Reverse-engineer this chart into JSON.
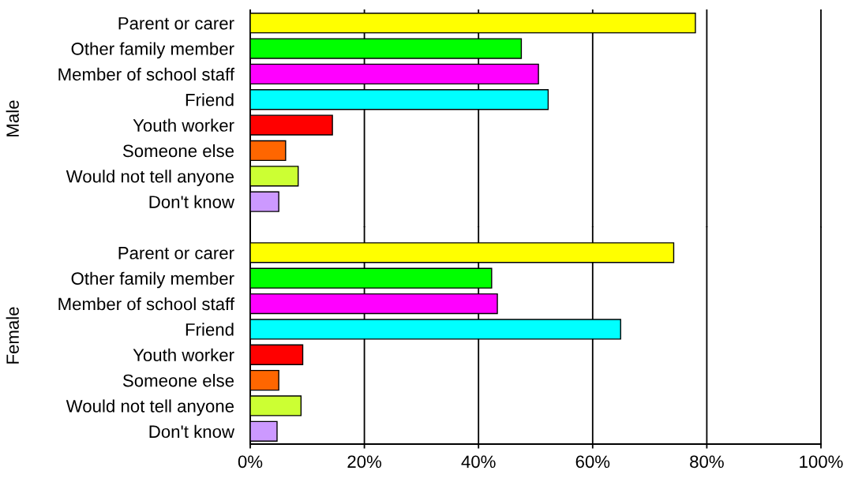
{
  "chart_data": [
    {
      "type": "bar",
      "orientation": "horizontal",
      "ylabel": "Male",
      "categories": [
        "Parent or carer",
        "Other family member",
        "Member of school staff",
        "Friend",
        "Youth worker",
        "Someone else",
        "Would not tell anyone",
        "Don't know"
      ],
      "values": [
        78.0,
        47.5,
        50.5,
        52.2,
        14.4,
        6.2,
        8.4,
        5.0
      ],
      "colors": [
        "#ffff00",
        "#00ff00",
        "#ff00ff",
        "#00ffff",
        "#ff0000",
        "#ff6600",
        "#ccff33",
        "#cc99ff"
      ],
      "xlim": [
        0,
        100
      ],
      "xticks": [
        {
          "value": 0,
          "label": null
        },
        {
          "value": 20,
          "label": null
        },
        {
          "value": 40,
          "label": null
        },
        {
          "value": 60,
          "label": null
        },
        {
          "value": 80,
          "label": null
        },
        {
          "value": 100,
          "label": null
        }
      ],
      "grid": "x",
      "tick_labels": "y"
    },
    {
      "type": "bar",
      "orientation": "horizontal",
      "ylabel": "Female",
      "categories": [
        "Parent or carer",
        "Other family member",
        "Member of school staff",
        "Friend",
        "Youth worker",
        "Someone else",
        "Would not tell anyone",
        "Don't know"
      ],
      "values": [
        74.2,
        42.3,
        43.3,
        64.9,
        9.2,
        5.0,
        8.9,
        4.7
      ],
      "colors": [
        "#ffff00",
        "#00ff00",
        "#ff00ff",
        "#00ffff",
        "#ff0000",
        "#ff6600",
        "#ccff33",
        "#cc99ff"
      ],
      "xlim": [
        0,
        100
      ],
      "xticks": [
        {
          "value": 0,
          "label": "0%"
        },
        {
          "value": 20,
          "label": "20%"
        },
        {
          "value": 40,
          "label": "40%"
        },
        {
          "value": 60,
          "label": "60%"
        },
        {
          "value": 80,
          "label": "80%"
        },
        {
          "value": 100,
          "label": "100%"
        }
      ],
      "grid": "x"
    }
  ]
}
